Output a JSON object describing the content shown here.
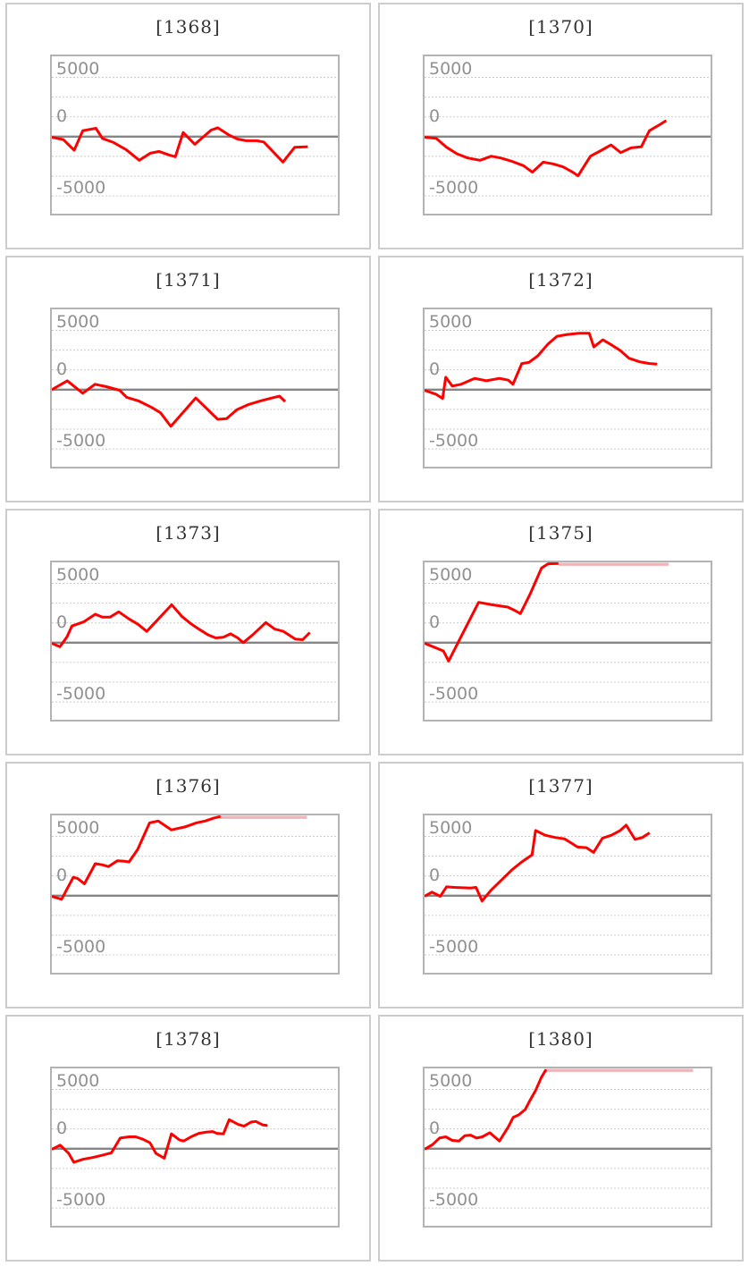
{
  "layout": {
    "y_axis_labels": [
      "5000",
      "0",
      "-5000"
    ],
    "colors": {
      "series": "#ff0000",
      "cap_overflow": "#f0b4b8",
      "gridline": "#cccccc",
      "zero_line": "#858585",
      "plot_border": "#b3b3b3",
      "cell_border": "#cccccc",
      "title_text": "#333333",
      "axis_text": "#919191"
    }
  },
  "chart_data": [
    {
      "type": "line",
      "title": "[1368]",
      "ylabel": "",
      "ylim": [
        -6750,
        6750
      ],
      "yticks": [
        5000,
        0,
        -5000
      ],
      "grid": "dotted-horizontal",
      "points": [
        [
          0,
          -50
        ],
        [
          0.04,
          -250
        ],
        [
          0.078,
          -1150
        ],
        [
          0.108,
          500
        ],
        [
          0.154,
          700
        ],
        [
          0.177,
          -150
        ],
        [
          0.216,
          -500
        ],
        [
          0.26,
          -1100
        ],
        [
          0.306,
          -2000
        ],
        [
          0.344,
          -1400
        ],
        [
          0.375,
          -1250
        ],
        [
          0.411,
          -1550
        ],
        [
          0.432,
          -1700
        ],
        [
          0.459,
          350
        ],
        [
          0.5,
          -650
        ],
        [
          0.557,
          550
        ],
        [
          0.58,
          750
        ],
        [
          0.618,
          150
        ],
        [
          0.649,
          -200
        ],
        [
          0.68,
          -350
        ],
        [
          0.716,
          -350
        ],
        [
          0.741,
          -450
        ],
        [
          0.767,
          -1100
        ],
        [
          0.808,
          -2150
        ],
        [
          0.849,
          -900
        ],
        [
          0.895,
          -850
        ]
      ],
      "cap": null
    },
    {
      "type": "line",
      "title": "[1370]",
      "ylabel": "",
      "ylim": [
        -6750,
        6750
      ],
      "yticks": [
        5000,
        0,
        -5000
      ],
      "grid": "dotted-horizontal",
      "points": [
        [
          0,
          -50
        ],
        [
          0.041,
          -150
        ],
        [
          0.077,
          -900
        ],
        [
          0.113,
          -1450
        ],
        [
          0.151,
          -1800
        ],
        [
          0.194,
          -2000
        ],
        [
          0.233,
          -1650
        ],
        [
          0.266,
          -1800
        ],
        [
          0.307,
          -2100
        ],
        [
          0.346,
          -2450
        ],
        [
          0.377,
          -3000
        ],
        [
          0.415,
          -2150
        ],
        [
          0.449,
          -2300
        ],
        [
          0.484,
          -2550
        ],
        [
          0.518,
          -3000
        ],
        [
          0.537,
          -3300
        ],
        [
          0.58,
          -1650
        ],
        [
          0.619,
          -1150
        ],
        [
          0.652,
          -700
        ],
        [
          0.686,
          -1350
        ],
        [
          0.722,
          -950
        ],
        [
          0.758,
          -850
        ],
        [
          0.786,
          500
        ],
        [
          0.822,
          1000
        ],
        [
          0.845,
          1350
        ]
      ],
      "cap": null
    },
    {
      "type": "line",
      "title": "[1371]",
      "ylabel": "",
      "ylim": [
        -6750,
        6750
      ],
      "yticks": [
        5000,
        0,
        -5000
      ],
      "grid": "dotted-horizontal",
      "points": [
        [
          0,
          0
        ],
        [
          0.054,
          750
        ],
        [
          0.108,
          -300
        ],
        [
          0.151,
          450
        ],
        [
          0.191,
          250
        ],
        [
          0.237,
          -50
        ],
        [
          0.262,
          -650
        ],
        [
          0.303,
          -950
        ],
        [
          0.349,
          -1500
        ],
        [
          0.38,
          -1950
        ],
        [
          0.416,
          -3100
        ],
        [
          0.503,
          -700
        ],
        [
          0.58,
          -2500
        ],
        [
          0.611,
          -2450
        ],
        [
          0.647,
          -1700
        ],
        [
          0.688,
          -1250
        ],
        [
          0.729,
          -950
        ],
        [
          0.77,
          -700
        ],
        [
          0.796,
          -550
        ],
        [
          0.816,
          -1000
        ]
      ],
      "cap": null
    },
    {
      "type": "line",
      "title": "[1372]",
      "ylabel": "",
      "ylim": [
        -6750,
        6750
      ],
      "yticks": [
        5000,
        0,
        -5000
      ],
      "grid": "dotted-horizontal",
      "points": [
        [
          0,
          -50
        ],
        [
          0.041,
          -400
        ],
        [
          0.063,
          -750
        ],
        [
          0.074,
          1050
        ],
        [
          0.097,
          300
        ],
        [
          0.128,
          450
        ],
        [
          0.175,
          950
        ],
        [
          0.216,
          750
        ],
        [
          0.262,
          950
        ],
        [
          0.293,
          800
        ],
        [
          0.309,
          450
        ],
        [
          0.34,
          2200
        ],
        [
          0.365,
          2300
        ],
        [
          0.396,
          2850
        ],
        [
          0.432,
          3850
        ],
        [
          0.463,
          4500
        ],
        [
          0.499,
          4650
        ],
        [
          0.54,
          4750
        ],
        [
          0.576,
          4750
        ],
        [
          0.592,
          3600
        ],
        [
          0.623,
          4200
        ],
        [
          0.648,
          3850
        ],
        [
          0.684,
          3300
        ],
        [
          0.715,
          2650
        ],
        [
          0.751,
          2350
        ],
        [
          0.787,
          2200
        ],
        [
          0.813,
          2150
        ]
      ],
      "cap": null
    },
    {
      "type": "line",
      "title": "[1373]",
      "ylabel": "",
      "ylim": [
        -6750,
        6750
      ],
      "yticks": [
        5000,
        0,
        -5000
      ],
      "grid": "dotted-horizontal",
      "points": [
        [
          0,
          -50
        ],
        [
          0.028,
          -350
        ],
        [
          0.053,
          500
        ],
        [
          0.07,
          1400
        ],
        [
          0.111,
          1750
        ],
        [
          0.152,
          2400
        ],
        [
          0.177,
          2150
        ],
        [
          0.203,
          2150
        ],
        [
          0.234,
          2600
        ],
        [
          0.27,
          2000
        ],
        [
          0.301,
          1550
        ],
        [
          0.332,
          950
        ],
        [
          0.419,
          3200
        ],
        [
          0.455,
          2200
        ],
        [
          0.486,
          1600
        ],
        [
          0.517,
          1100
        ],
        [
          0.547,
          650
        ],
        [
          0.573,
          400
        ],
        [
          0.599,
          450
        ],
        [
          0.625,
          750
        ],
        [
          0.65,
          400
        ],
        [
          0.669,
          0
        ],
        [
          0.702,
          650
        ],
        [
          0.748,
          1700
        ],
        [
          0.779,
          1150
        ],
        [
          0.81,
          950
        ],
        [
          0.851,
          300
        ],
        [
          0.877,
          250
        ],
        [
          0.902,
          850
        ]
      ],
      "cap": null
    },
    {
      "type": "line",
      "title": "[1375]",
      "ylabel": "",
      "ylim": [
        -6750,
        6750
      ],
      "yticks": [
        5000,
        0,
        -5000
      ],
      "grid": "dotted-horizontal",
      "points": [
        [
          0,
          -50
        ],
        [
          0.041,
          -450
        ],
        [
          0.066,
          -700
        ],
        [
          0.084,
          -1550
        ],
        [
          0.189,
          3400
        ],
        [
          0.235,
          3200
        ],
        [
          0.291,
          3000
        ],
        [
          0.317,
          2700
        ],
        [
          0.335,
          2450
        ],
        [
          0.368,
          4050
        ],
        [
          0.409,
          6300
        ],
        [
          0.432,
          6650
        ],
        [
          0.468,
          6850
        ]
      ],
      "cap": {
        "from": 0.468,
        "to": 0.854,
        "value": 6900
      }
    },
    {
      "type": "line",
      "title": "[1376]",
      "ylabel": "",
      "ylim": [
        -6750,
        6750
      ],
      "yticks": [
        5000,
        0,
        -5000
      ],
      "grid": "dotted-horizontal",
      "points": [
        [
          0,
          -50
        ],
        [
          0.034,
          -300
        ],
        [
          0.075,
          1550
        ],
        [
          0.09,
          1450
        ],
        [
          0.114,
          1000
        ],
        [
          0.152,
          2700
        ],
        [
          0.177,
          2600
        ],
        [
          0.198,
          2450
        ],
        [
          0.229,
          2950
        ],
        [
          0.254,
          2900
        ],
        [
          0.27,
          2850
        ],
        [
          0.3,
          3900
        ],
        [
          0.342,
          6150
        ],
        [
          0.372,
          6300
        ],
        [
          0.418,
          5550
        ],
        [
          0.465,
          5800
        ],
        [
          0.506,
          6150
        ],
        [
          0.536,
          6300
        ],
        [
          0.567,
          6550
        ],
        [
          0.59,
          6850
        ]
      ],
      "cap": {
        "from": 0.59,
        "to": 0.892,
        "value": 6900
      }
    },
    {
      "type": "line",
      "title": "[1377]",
      "ylabel": "",
      "ylim": [
        -6750,
        6750
      ],
      "yticks": [
        5000,
        0,
        -5000
      ],
      "grid": "dotted-horizontal",
      "points": [
        [
          0,
          -50
        ],
        [
          0.026,
          300
        ],
        [
          0.055,
          -50
        ],
        [
          0.077,
          750
        ],
        [
          0.103,
          700
        ],
        [
          0.16,
          650
        ],
        [
          0.18,
          700
        ],
        [
          0.201,
          -450
        ],
        [
          0.232,
          450
        ],
        [
          0.268,
          1300
        ],
        [
          0.304,
          2150
        ],
        [
          0.34,
          2850
        ],
        [
          0.376,
          3450
        ],
        [
          0.388,
          5500
        ],
        [
          0.422,
          5100
        ],
        [
          0.458,
          4900
        ],
        [
          0.489,
          4800
        ],
        [
          0.509,
          4500
        ],
        [
          0.535,
          4100
        ],
        [
          0.566,
          4050
        ],
        [
          0.591,
          3650
        ],
        [
          0.622,
          4850
        ],
        [
          0.653,
          5100
        ],
        [
          0.684,
          5500
        ],
        [
          0.705,
          5950
        ],
        [
          0.736,
          4750
        ],
        [
          0.761,
          4900
        ],
        [
          0.787,
          5300
        ]
      ],
      "cap": null
    },
    {
      "type": "line",
      "title": "[1378]",
      "ylabel": "",
      "ylim": [
        -6750,
        6750
      ],
      "yticks": [
        5000,
        0,
        -5000
      ],
      "grid": "dotted-horizontal",
      "points": [
        [
          0,
          -50
        ],
        [
          0.029,
          300
        ],
        [
          0.059,
          -400
        ],
        [
          0.077,
          -1150
        ],
        [
          0.108,
          -900
        ],
        [
          0.142,
          -750
        ],
        [
          0.177,
          -550
        ],
        [
          0.208,
          -350
        ],
        [
          0.239,
          900
        ],
        [
          0.27,
          1000
        ],
        [
          0.293,
          1000
        ],
        [
          0.318,
          800
        ],
        [
          0.343,
          500
        ],
        [
          0.364,
          -400
        ],
        [
          0.393,
          -800
        ],
        [
          0.418,
          1250
        ],
        [
          0.446,
          750
        ],
        [
          0.461,
          650
        ],
        [
          0.487,
          1000
        ],
        [
          0.514,
          1300
        ],
        [
          0.541,
          1400
        ],
        [
          0.562,
          1450
        ],
        [
          0.577,
          1300
        ],
        [
          0.6,
          1250
        ],
        [
          0.62,
          2450
        ],
        [
          0.651,
          2050
        ],
        [
          0.672,
          1900
        ],
        [
          0.697,
          2250
        ],
        [
          0.713,
          2300
        ],
        [
          0.738,
          2000
        ],
        [
          0.754,
          1950
        ]
      ],
      "cap": null
    },
    {
      "type": "line",
      "title": "[1380]",
      "ylabel": "",
      "ylim": [
        -6750,
        6750
      ],
      "yticks": [
        5000,
        0,
        -5000
      ],
      "grid": "dotted-horizontal",
      "points": [
        [
          0,
          -50
        ],
        [
          0.028,
          350
        ],
        [
          0.052,
          900
        ],
        [
          0.074,
          1000
        ],
        [
          0.097,
          700
        ],
        [
          0.12,
          650
        ],
        [
          0.141,
          1100
        ],
        [
          0.161,
          1150
        ],
        [
          0.182,
          900
        ],
        [
          0.202,
          1000
        ],
        [
          0.228,
          1350
        ],
        [
          0.262,
          650
        ],
        [
          0.293,
          1850
        ],
        [
          0.31,
          2650
        ],
        [
          0.329,
          2850
        ],
        [
          0.352,
          3300
        ],
        [
          0.367,
          4000
        ],
        [
          0.388,
          4900
        ],
        [
          0.408,
          6000
        ],
        [
          0.425,
          6850
        ]
      ],
      "cap": {
        "from": 0.425,
        "to": 0.939,
        "value": 6900
      }
    }
  ]
}
